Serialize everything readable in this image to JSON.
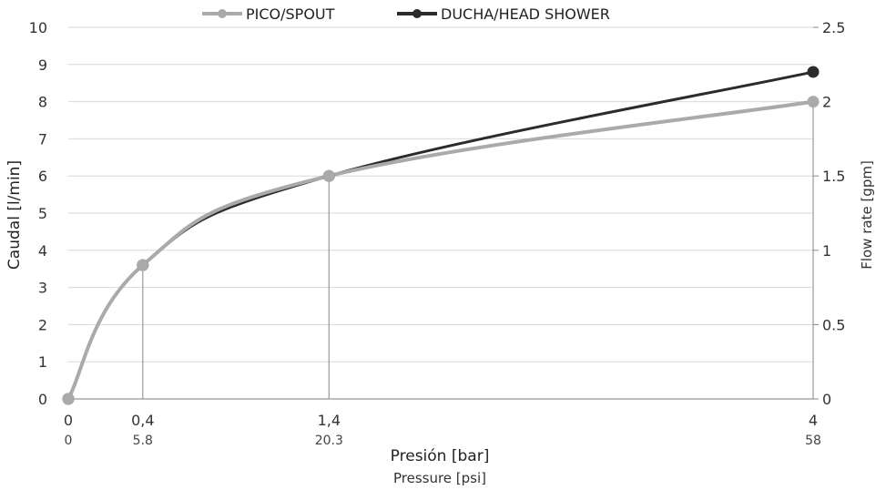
{
  "chart_data": {
    "type": "line",
    "x": [
      0,
      0.4,
      1.4,
      4
    ],
    "x_tick_labels": [
      "0",
      "0,4",
      "1,4",
      "4"
    ],
    "x_sub_tick_labels": [
      "0",
      "5.8",
      "20.3",
      "58"
    ],
    "xlabel": "Presión [bar]",
    "xlabel_sub": "Pressure [psi]",
    "ylabel": "Caudal [l/min]",
    "ylim": [
      0,
      10
    ],
    "y_ticks": [
      "0",
      "1",
      "2",
      "3",
      "4",
      "5",
      "6",
      "7",
      "8",
      "9",
      "10"
    ],
    "y2label": "Flow rate [gpm]",
    "y2lim": [
      0,
      2.5
    ],
    "y2_ticks": [
      "0",
      "0.5",
      "1",
      "1.5",
      "2",
      "2.5"
    ],
    "grid": true,
    "legend_position": "top",
    "series": [
      {
        "name": "PICO/SPOUT",
        "values": [
          0,
          3.6,
          6.0,
          8.0
        ],
        "color": "#aaaaaa"
      },
      {
        "name": "DUCHA/HEAD SHOWER",
        "values": [
          0,
          3.6,
          6.0,
          8.8
        ],
        "color": "#2b2b2b"
      }
    ]
  }
}
